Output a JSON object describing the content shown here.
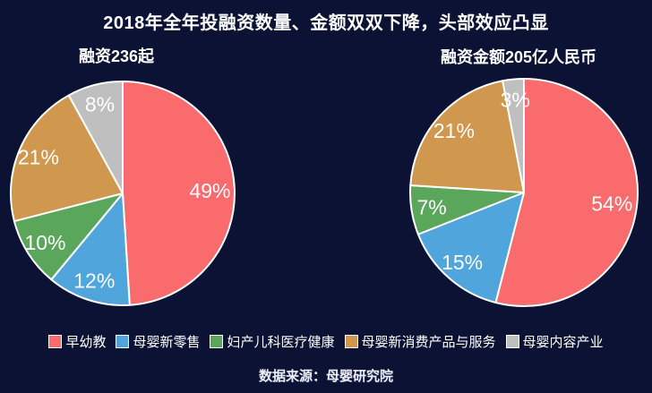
{
  "page": {
    "title": "2018年全年投融资数量、金额双双下降，头部效应凸显",
    "source": "数据来源：母婴研究院",
    "background_color": "#0b1234",
    "text_color": "#ffffff"
  },
  "chart_data": [
    {
      "type": "pie",
      "title": "融资236起",
      "categories": [
        "早幼教",
        "母婴新零售",
        "妇产儿科医疗健康",
        "母婴新消费产品与服务",
        "母婴内容产业"
      ],
      "values": [
        49,
        12,
        10,
        21,
        8
      ],
      "data_labels": [
        "49%",
        "12%",
        "10%",
        "21%",
        "8%"
      ],
      "colors": [
        "#f96b6d",
        "#4fa5dc",
        "#5aa75c",
        "#d0984f",
        "#bfbfbf"
      ],
      "start_angle_deg": 0,
      "direction": "clockwise",
      "slice_border_color": "#ffffff",
      "label_color": "#ffffff"
    },
    {
      "type": "pie",
      "title": "融资金额205亿人民币",
      "categories": [
        "早幼教",
        "母婴新零售",
        "妇产儿科医疗健康",
        "母婴新消费产品与服务",
        "母婴内容产业"
      ],
      "values": [
        54,
        15,
        7,
        21,
        3
      ],
      "data_labels": [
        "54%",
        "15%",
        "7%",
        "21%",
        "3%"
      ],
      "colors": [
        "#f96b6d",
        "#4fa5dc",
        "#5aa75c",
        "#d0984f",
        "#bfbfbf"
      ],
      "start_angle_deg": 0,
      "direction": "clockwise",
      "slice_border_color": "#ffffff",
      "label_color": "#ffffff"
    }
  ],
  "legend": {
    "items": [
      {
        "label": "早幼教",
        "color": "#f96b6d"
      },
      {
        "label": "母婴新零售",
        "color": "#4fa5dc"
      },
      {
        "label": "妇产儿科医疗健康",
        "color": "#5aa75c"
      },
      {
        "label": "母婴新消费产品与服务",
        "color": "#d0984f"
      },
      {
        "label": "母婴内容产业",
        "color": "#bfbfbf"
      }
    ],
    "swatch_border_color": "#ffffff"
  }
}
